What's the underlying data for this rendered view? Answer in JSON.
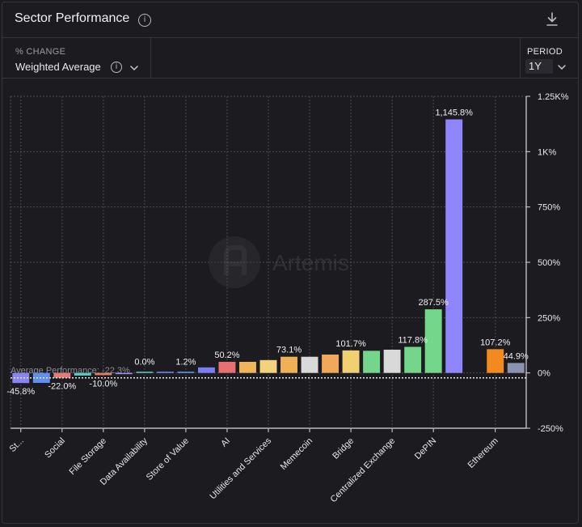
{
  "header": {
    "title": "Sector Performance",
    "info_icon": "info-icon",
    "download_icon": "download-icon"
  },
  "controls": {
    "metric_label": "% CHANGE",
    "metric_value": "Weighted Average",
    "period_label": "PERIOD",
    "period_value": "1Y"
  },
  "watermark": "Artemis",
  "colors": {
    "background": "#1c1c20",
    "grid": "#4a4a52",
    "text": "#e6e6ea"
  },
  "chart_data": {
    "type": "bar",
    "y_unit": "%",
    "ylim": [
      -250,
      1250
    ],
    "y_ticks": [
      -250,
      0,
      250,
      500,
      750,
      1000,
      1250
    ],
    "y_tick_labels": [
      "-250%",
      "0%",
      "250%",
      "500%",
      "750%",
      "1K%",
      "1.25K%"
    ],
    "grid": true,
    "categories": [
      "St...",
      "",
      "Social",
      "",
      "File Storage",
      "",
      "Data Availability",
      "",
      "Store of Value",
      "",
      "AI",
      "",
      "Utilities and Services",
      "",
      "Memecoin",
      "",
      "Bridge",
      "",
      "Centralized Exchange",
      "",
      "DePIN",
      "",
      "",
      "Ethereum",
      ""
    ],
    "values": [
      -45.8,
      -45,
      -22.0,
      -12,
      -10.0,
      -5,
      0.0,
      0.3,
      1.2,
      25,
      50.2,
      50,
      58,
      73.1,
      73,
      83,
      101.7,
      100,
      105,
      117.8,
      287.5,
      1145.8,
      0,
      107.2,
      44.9
    ],
    "bar_colors": [
      "#8a83f5",
      "#5f8ff0",
      "#e87979",
      "#5cc7c2",
      "#e8795f",
      "#a68af0",
      "#5cc7c2",
      "#6c8cf0",
      "#5f9ff0",
      "#7d7df2",
      "#e87070",
      "#f0b45a",
      "#f2d27a",
      "#f2b056",
      "#d9d9d9",
      "#f2a85a",
      "#f2d072",
      "#74d68a",
      "#d9d9d9",
      "#74d68a",
      "#74d68a",
      "#8f86ff",
      "#000000",
      "#f28a1e",
      "#8c93b0"
    ],
    "data_labels": [
      "-45.8%",
      "",
      "-22.0%",
      "",
      "-10.0%",
      "",
      "0.0%",
      "",
      "1.2%",
      "",
      "50.2%",
      "",
      "",
      "73.1%",
      "",
      "",
      "101.7%",
      "",
      "",
      "117.8%",
      "287.5%",
      "1,145.8%",
      "",
      "107.2%",
      "44.9%"
    ],
    "reference_line": {
      "label": "Average Performance: -22.3%",
      "value": -22.3
    }
  }
}
